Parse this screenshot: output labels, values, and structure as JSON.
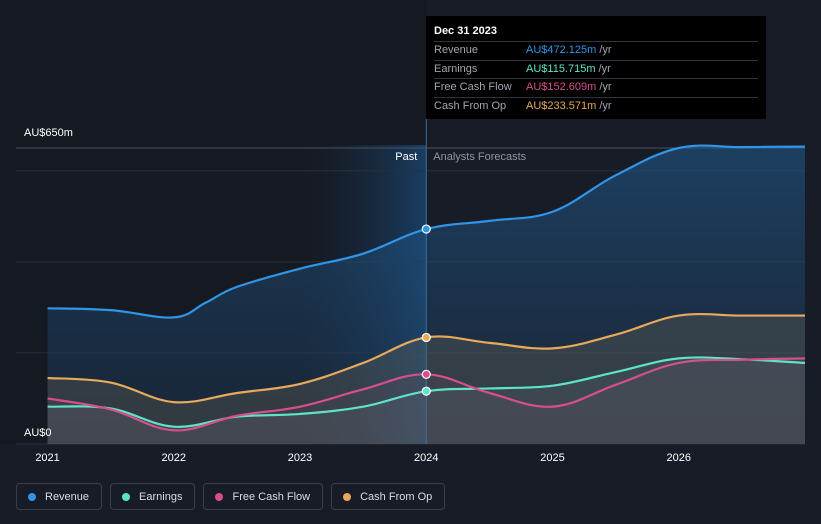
{
  "chart_data": {
    "type": "area",
    "title": "",
    "x": [
      2020.75,
      2021.0,
      2021.5,
      2022.0,
      2022.5,
      2023.0,
      2023.5,
      2024.0,
      2024.5,
      2025.0,
      2025.5,
      2026.0,
      2026.5,
      2027.0
    ],
    "xlim": [
      2020.75,
      2027.0
    ],
    "ylim": [
      0,
      650
    ],
    "y_axis_labels": [
      "AU$650m",
      "AU$0"
    ],
    "x_ticks": [
      "2021",
      "2022",
      "2023",
      "2024",
      "2025",
      "2026"
    ],
    "x_tick_values": [
      2021,
      2022,
      2023,
      2024,
      2025,
      2026
    ],
    "past_label": "Past",
    "forecast_label": "Analysts Forecasts",
    "divider_x": 2024.0,
    "series": [
      {
        "name": "Revenue",
        "color": "#2f95e8",
        "x": [
          2021.0,
          2021.5,
          2022.0,
          2022.25,
          2022.5,
          2023.0,
          2023.5,
          2024.0,
          2024.5,
          2025.0,
          2025.5,
          2026.0,
          2026.5,
          2027.0
        ],
        "values": [
          298,
          294,
          278,
          310,
          345,
          385,
          418,
          472,
          490,
          510,
          590,
          650,
          652,
          653
        ]
      },
      {
        "name": "Earnings",
        "color": "#5de4c8",
        "x": [
          2021.0,
          2021.5,
          2022.0,
          2022.5,
          2023.0,
          2023.5,
          2024.0,
          2024.5,
          2025.0,
          2025.5,
          2026.0,
          2026.5,
          2027.0
        ],
        "values": [
          82,
          78,
          38,
          60,
          66,
          82,
          116,
          122,
          128,
          158,
          188,
          186,
          178
        ]
      },
      {
        "name": "Free Cash Flow",
        "color": "#d64f8c",
        "x": [
          2021.0,
          2021.5,
          2022.0,
          2022.5,
          2023.0,
          2023.5,
          2024.0,
          2024.5,
          2025.0,
          2025.5,
          2026.0,
          2026.5,
          2027.0
        ],
        "values": [
          100,
          76,
          30,
          62,
          82,
          120,
          153,
          112,
          82,
          130,
          178,
          185,
          188
        ]
      },
      {
        "name": "Cash From Op",
        "color": "#e8a95a",
        "x": [
          2021.0,
          2021.5,
          2022.0,
          2022.5,
          2023.0,
          2023.5,
          2024.0,
          2024.5,
          2025.0,
          2025.5,
          2026.0,
          2026.5,
          2027.0
        ],
        "values": [
          145,
          135,
          92,
          112,
          132,
          178,
          234,
          222,
          210,
          240,
          282,
          282,
          282
        ]
      }
    ],
    "tooltip": {
      "date": "Dec 31 2023",
      "rows": [
        {
          "label": "Revenue",
          "value": "AU$472.125m",
          "unit": "/yr",
          "color": "#2f95e8"
        },
        {
          "label": "Earnings",
          "value": "AU$115.715m",
          "unit": "/yr",
          "color": "#5de4c8"
        },
        {
          "label": "Free Cash Flow",
          "value": "AU$152.609m",
          "unit": "/yr",
          "color": "#d64f8c"
        },
        {
          "label": "Cash From Op",
          "value": "AU$233.571m",
          "unit": "/yr",
          "color": "#e8a95a"
        }
      ]
    }
  },
  "legend": [
    {
      "label": "Revenue",
      "color": "#2f95e8"
    },
    {
      "label": "Earnings",
      "color": "#5de4c8"
    },
    {
      "label": "Free Cash Flow",
      "color": "#d64f8c"
    },
    {
      "label": "Cash From Op",
      "color": "#e8a95a"
    }
  ]
}
